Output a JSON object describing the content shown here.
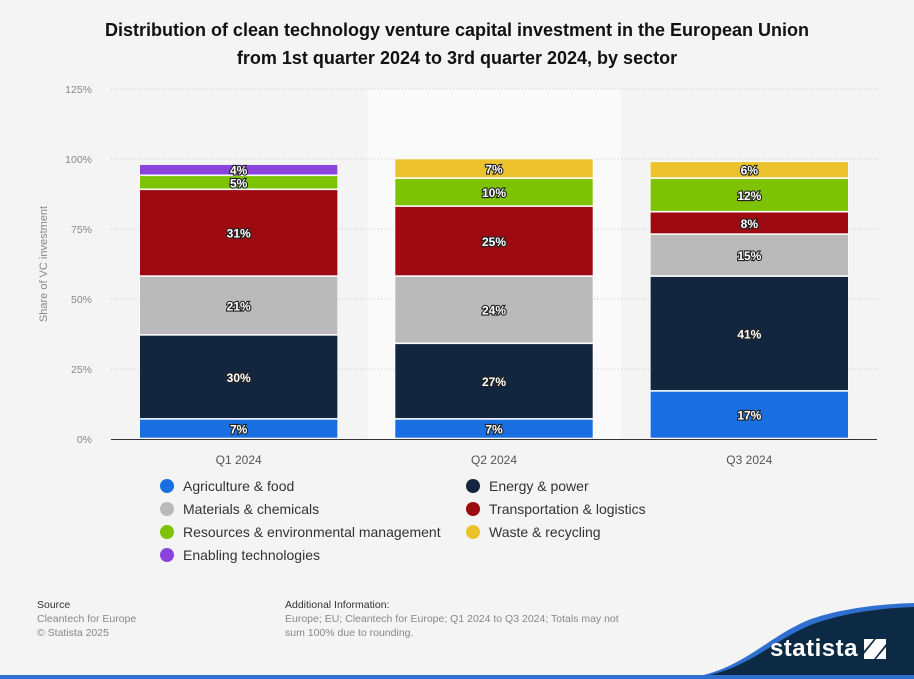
{
  "title_lines": [
    "Distribution of clean technology venture capital investment in the European Union",
    "from 1st quarter 2024 to 3rd quarter 2024, by sector"
  ],
  "chart_data": {
    "type": "bar",
    "stacked": true,
    "title": "Distribution of clean technology venture capital investment in the European Union from 1st quarter 2024 to 3rd quarter 2024, by sector",
    "xlabel": "",
    "ylabel": "Share of VC investment",
    "ylim": [
      0,
      125
    ],
    "yticks": [
      0,
      25,
      50,
      75,
      100,
      125
    ],
    "ytick_labels": [
      "0%",
      "25%",
      "50%",
      "75%",
      "100%",
      "125%"
    ],
    "grid": true,
    "highlighted_category": "Q2 2024",
    "categories": [
      "Q1 2024",
      "Q2 2024",
      "Q3 2024"
    ],
    "series": [
      {
        "name": "Agriculture & food",
        "color": "#1a6fe0",
        "values": [
          7,
          7,
          17
        ]
      },
      {
        "name": "Energy & power",
        "color": "#132640",
        "values": [
          30,
          27,
          41
        ]
      },
      {
        "name": "Materials & chemicals",
        "color": "#bababa",
        "values": [
          21,
          24,
          15
        ]
      },
      {
        "name": "Transportation & logistics",
        "color": "#9d0a12",
        "values": [
          31,
          25,
          8
        ]
      },
      {
        "name": "Resources & environmental management",
        "color": "#7dc304",
        "values": [
          5,
          10,
          12
        ]
      },
      {
        "name": "Waste & recycling",
        "color": "#ecc22c",
        "values": [
          0,
          7,
          6
        ]
      },
      {
        "name": "Enabling technologies",
        "color": "#8a43dc",
        "values": [
          4,
          0,
          0
        ]
      }
    ],
    "value_label_suffix": "%",
    "legend_position": "bottom"
  },
  "legend": [
    {
      "label": "Agriculture & food",
      "color": "#1a6fe0"
    },
    {
      "label": "Energy & power",
      "color": "#132640"
    },
    {
      "label": "Materials & chemicals",
      "color": "#bababa"
    },
    {
      "label": "Transportation & logistics",
      "color": "#9d0a12"
    },
    {
      "label": "Resources & environmental management",
      "color": "#7dc304"
    },
    {
      "label": "Waste & recycling",
      "color": "#ecc22c"
    },
    {
      "label": "Enabling technologies",
      "color": "#8a43dc"
    }
  ],
  "footer": {
    "source_heading": "Source",
    "source_lines": [
      "Cleantech for Europe",
      "© Statista 2025"
    ],
    "info_heading": "Additional Information:",
    "info_lines": [
      "Europe; EU; Cleantech for Europe; Q1 2024 to Q3 2024; Totals may not",
      "sum 100% due to rounding."
    ]
  },
  "brand": {
    "name": "statista",
    "logo_icon": "statista-logo-icon",
    "color": "#0c2a44"
  }
}
